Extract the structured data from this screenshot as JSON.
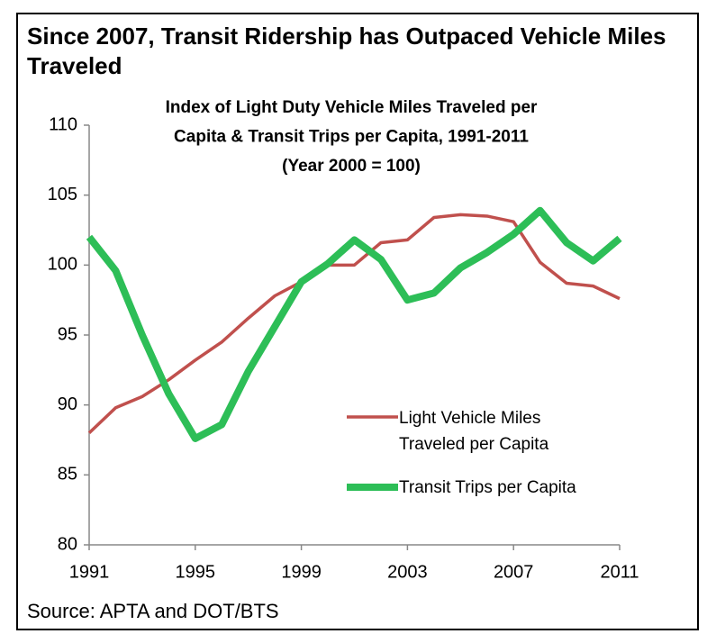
{
  "header": {
    "title": "Since 2007, Transit Ridership has Outpaced Vehicle Miles Traveled"
  },
  "chart_data": {
    "type": "line",
    "title": [
      "Index of Light Duty Vehicle Miles Traveled per",
      "Capita & Transit Trips per Capita, 1991-2011",
      "(Year 2000 = 100)"
    ],
    "x": [
      1991,
      1992,
      1993,
      1994,
      1995,
      1996,
      1997,
      1998,
      1999,
      2000,
      2001,
      2002,
      2003,
      2004,
      2005,
      2006,
      2007,
      2008,
      2009,
      2010,
      2011
    ],
    "series": [
      {
        "name": "Light Vehicle Miles Traveled per Capita",
        "color": "#c0504d",
        "values": [
          88,
          89.8,
          90.6,
          91.8,
          93.2,
          94.5,
          96.2,
          97.8,
          98.8,
          100,
          100,
          101.6,
          101.8,
          103.4,
          103.6,
          103.5,
          103.1,
          100.2,
          98.7,
          98.5,
          97.6
        ]
      },
      {
        "name": "Transit Trips per Capita",
        "color": "#2dbe57",
        "values": [
          102,
          99.6,
          95,
          90.8,
          87.6,
          88.6,
          92.4,
          95.6,
          98.8,
          100.1,
          101.8,
          100.4,
          97.5,
          98,
          99.8,
          100.9,
          102.2,
          103.9,
          101.6,
          100.3,
          101.9
        ]
      }
    ],
    "xlim": [
      1991,
      2011
    ],
    "xticks": [
      1991,
      1995,
      1999,
      2003,
      2007,
      2011
    ],
    "ylim": [
      80,
      110
    ],
    "yticks": [
      80,
      85,
      90,
      95,
      100,
      105,
      110
    ],
    "grid": false
  },
  "footer": {
    "source": "Source:  APTA and DOT/BTS"
  }
}
